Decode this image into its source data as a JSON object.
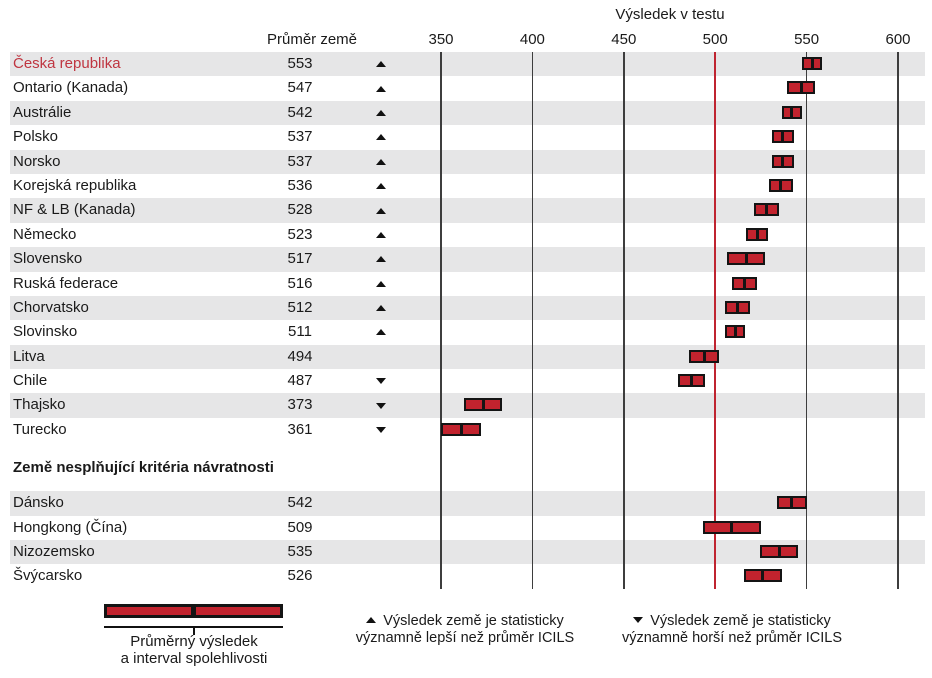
{
  "chart_data": {
    "type": "bar",
    "variant": "horizontal-confidence-interval-dotplot",
    "title": "Výsledek v testu",
    "average_column_label": "Průměr země",
    "x_axis": {
      "min": 350,
      "max": 600,
      "ticks": [
        350,
        400,
        450,
        500,
        550,
        600
      ],
      "reference_line": 500,
      "grid": true
    },
    "series": [
      {
        "country": "Česká republika",
        "average": 553,
        "ci_half": 4.2,
        "significance": "better",
        "highlight": true
      },
      {
        "country": "Ontario (Kanada)",
        "average": 547,
        "ci_half": 6.4,
        "significance": "better",
        "highlight": false
      },
      {
        "country": "Austrálie",
        "average": 542,
        "ci_half": 4.6,
        "significance": "better",
        "highlight": false
      },
      {
        "country": "Polsko",
        "average": 537,
        "ci_half": 4.8,
        "significance": "better",
        "highlight": false
      },
      {
        "country": "Norsko",
        "average": 537,
        "ci_half": 4.8,
        "significance": "better",
        "highlight": false
      },
      {
        "country": "Korejská republika",
        "average": 536,
        "ci_half": 5.4,
        "significance": "better",
        "highlight": false
      },
      {
        "country": "NF & LB (Kanada)",
        "average": 528,
        "ci_half": 5.6,
        "significance": "better",
        "highlight": false
      },
      {
        "country": "Německo",
        "average": 523,
        "ci_half": 4.8,
        "significance": "better",
        "highlight": false
      },
      {
        "country": "Slovensko",
        "average": 517,
        "ci_half": 9.2,
        "significance": "better",
        "highlight": false
      },
      {
        "country": "Ruská federace",
        "average": 516,
        "ci_half": 5.6,
        "significance": "better",
        "highlight": false
      },
      {
        "country": "Chorvatsko",
        "average": 512,
        "ci_half": 5.8,
        "significance": "better",
        "highlight": false
      },
      {
        "country": "Slovinsko",
        "average": 511,
        "ci_half": 4.4,
        "significance": "better",
        "highlight": false
      },
      {
        "country": "Litva",
        "average": 494,
        "ci_half": 7.2,
        "significance": "none",
        "highlight": false
      },
      {
        "country": "Chile",
        "average": 487,
        "ci_half": 6.2,
        "significance": "worse",
        "highlight": false
      },
      {
        "country": "Thajsko",
        "average": 373,
        "ci_half": 9.4,
        "significance": "worse",
        "highlight": false
      },
      {
        "country": "Turecko",
        "average": 361,
        "ci_half": 10.0,
        "significance": "worse",
        "highlight": false
      }
    ],
    "nonresponse_section": {
      "header": "Země nesplňující kritéria návratnosti",
      "series": [
        {
          "country": "Dánsko",
          "average": 542,
          "ci_half": 7.0,
          "significance": "none",
          "highlight": false
        },
        {
          "country": "Hongkong (Čína)",
          "average": 509,
          "ci_half": 14.8,
          "significance": "none",
          "highlight": false
        },
        {
          "country": "Nizozemsko",
          "average": 535,
          "ci_half": 9.4,
          "significance": "none",
          "highlight": false
        },
        {
          "country": "Švýcarsko",
          "average": 526,
          "ci_half": 9.2,
          "significance": "none",
          "highlight": false
        }
      ]
    },
    "legend": {
      "interval": [
        "Průměrný výsledek",
        "a interval spolehlivosti"
      ],
      "better": [
        "Výsledek země je statisticky",
        "významně lepší než průměr ICILS"
      ],
      "worse": [
        "Výsledek země je statisticky",
        "významně horší než průměr ICILS"
      ]
    }
  },
  "colors": {
    "bar_fill": "#c2232e",
    "bar_border": "#141414",
    "reference_line": "#bf2430",
    "gridline": "#3d3d3d",
    "row_stripe": "#e6e6e7",
    "highlight_country": "#bf3540",
    "text": "#1a1a1a"
  }
}
